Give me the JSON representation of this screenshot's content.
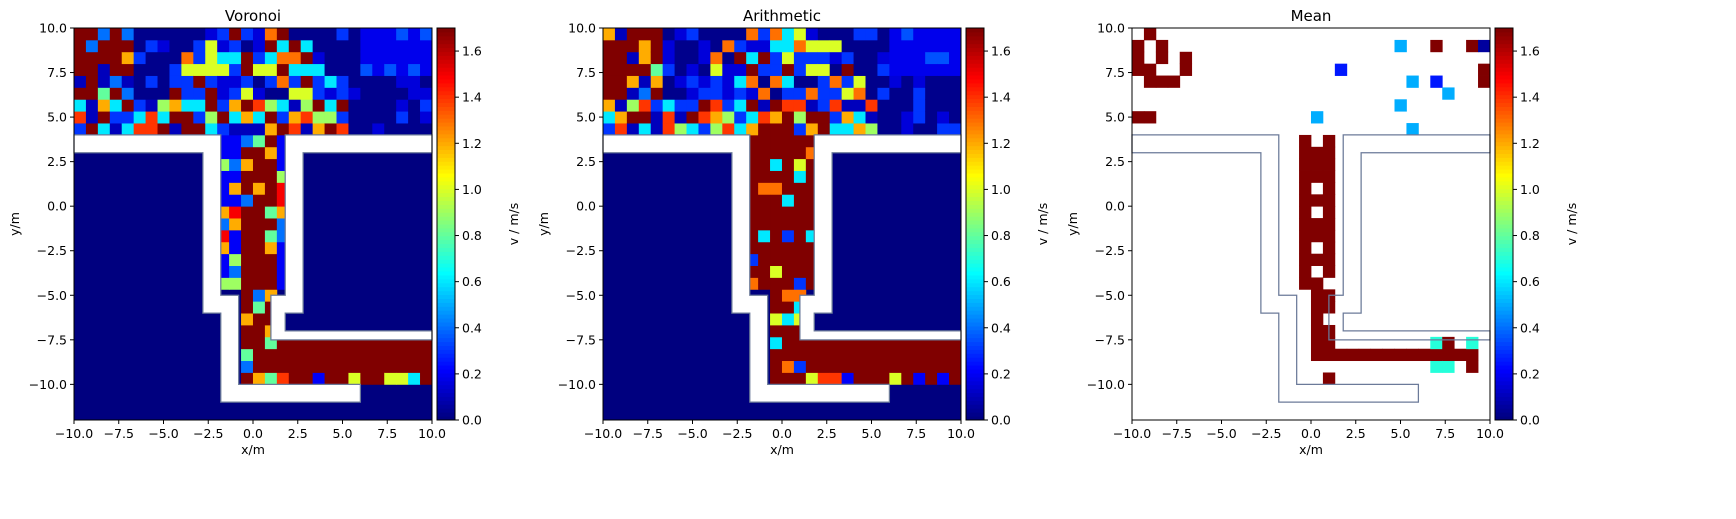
{
  "chart_data": [
    {
      "type": "heatmap",
      "title": "Voronoi",
      "xlabel": "x/m",
      "ylabel": "y/m",
      "xlim": [
        -10,
        10
      ],
      "ylim": [
        -12,
        10
      ],
      "xticks": [
        "−10.0",
        "−7.5",
        "−5.0",
        "−2.5",
        "0.0",
        "2.5",
        "5.0",
        "7.5",
        "10.0"
      ],
      "yticks": [
        "10.0",
        "7.5",
        "5.0",
        "2.5",
        "0.0",
        "−2.5",
        "−5.0",
        "−7.5",
        "−10.0"
      ],
      "colorbar": {
        "label": "v / m/s",
        "min": 0,
        "max": 1.7,
        "ticks": [
          "0.0",
          "0.2",
          "0.4",
          "0.6",
          "0.8",
          "1.0",
          "1.2",
          "1.4",
          "1.6"
        ]
      }
    },
    {
      "type": "heatmap",
      "title": "Arithmetic",
      "xlabel": "x/m",
      "ylabel": "y/m",
      "xlim": [
        -10,
        10
      ],
      "ylim": [
        -12,
        10
      ],
      "xticks": [
        "−10.0",
        "−7.5",
        "−5.0",
        "−2.5",
        "0.0",
        "2.5",
        "5.0",
        "7.5",
        "10.0"
      ],
      "yticks": [
        "10.0",
        "7.5",
        "5.0",
        "2.5",
        "0.0",
        "−2.5",
        "−5.0",
        "−7.5",
        "−10.0"
      ],
      "colorbar": {
        "label": "v / m/s",
        "min": 0,
        "max": 1.7,
        "ticks": [
          "0.0",
          "0.2",
          "0.4",
          "0.6",
          "0.8",
          "1.0",
          "1.2",
          "1.4",
          "1.6"
        ]
      }
    },
    {
      "type": "heatmap",
      "title": "Mean",
      "xlabel": "x/m",
      "ylabel": "y/m",
      "xlim": [
        -10,
        10
      ],
      "ylim": [
        -12,
        10
      ],
      "xticks": [
        "−10.0",
        "−7.5",
        "−5.0",
        "−2.5",
        "0.0",
        "2.5",
        "5.0",
        "7.5",
        "10.0"
      ],
      "yticks": [
        "10.0",
        "7.5",
        "5.0",
        "2.5",
        "0.0",
        "−2.5",
        "−5.0",
        "−7.5",
        "−10.0"
      ],
      "colorbar": {
        "label": "v / m/s",
        "min": 0,
        "max": 1.7,
        "ticks": [
          "0.0",
          "0.2",
          "0.4",
          "0.6",
          "0.8",
          "1.0",
          "1.2",
          "1.4",
          "1.6"
        ]
      }
    }
  ],
  "geometry_walls": {
    "upper_wall": {
      "y": [
        3.0,
        4.0
      ]
    },
    "left_corridor_x": [
      -2.8,
      -1.8
    ],
    "right_corridor_x": [
      1.8,
      2.8
    ],
    "lower_arm_y": [
      -7.5,
      -7.0
    ]
  }
}
